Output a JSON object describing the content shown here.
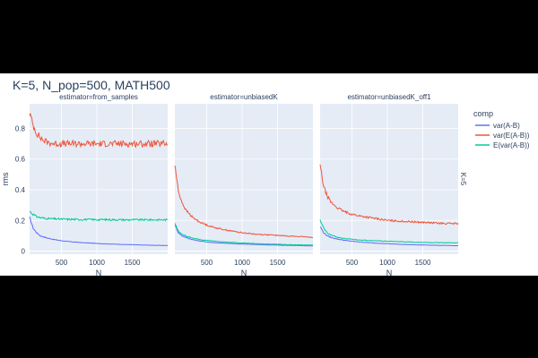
{
  "chart_data": {
    "type": "line",
    "title": "K=5, N_pop=500, MATH500",
    "ylabel": "rms",
    "xlabel": "N",
    "facet_row_label": "K=5",
    "legend_title": "comp",
    "xlim": [
      50,
      2000
    ],
    "ylim": [
      -0.02,
      0.96
    ],
    "xticks": [
      500,
      1000,
      1500
    ],
    "yticks": [
      0,
      0.2,
      0.4,
      0.6,
      0.8
    ],
    "series_meta": [
      {
        "name": "var(A-B)",
        "color": "#636efa"
      },
      {
        "name": "var(E(A-B))",
        "color": "#ef553b"
      },
      {
        "name": "E(var(A-B))",
        "color": "#00cc96"
      }
    ],
    "panels": [
      {
        "subtitle": "estimator=from_samples",
        "series": [
          {
            "name": "var(A-B)",
            "x": [
              50,
              100,
              150,
              200,
              300,
              400,
              500,
              600,
              800,
              1000,
              1200,
              1400,
              1600,
              1800,
              2000
            ],
            "y": [
              0.22,
              0.15,
              0.12,
              0.1,
              0.085,
              0.075,
              0.068,
              0.062,
              0.055,
              0.05,
              0.046,
              0.043,
              0.04,
              0.038,
              0.036
            ]
          },
          {
            "name": "var(E(A-B))",
            "x": [
              50,
              100,
              150,
              200,
              250,
              300,
              400,
              500,
              600,
              800,
              1000,
              1200,
              1400,
              1600,
              1800,
              2000
            ],
            "y": [
              0.9,
              0.82,
              0.77,
              0.74,
              0.72,
              0.71,
              0.7,
              0.7,
              0.7,
              0.7,
              0.7,
              0.7,
              0.7,
              0.7,
              0.7,
              0.7
            ]
          },
          {
            "name": "E(var(A-B))",
            "x": [
              50,
              100,
              150,
              200,
              300,
              400,
              500,
              600,
              800,
              1000,
              1200,
              1400,
              1600,
              1800,
              2000
            ],
            "y": [
              0.26,
              0.24,
              0.225,
              0.218,
              0.212,
              0.21,
              0.208,
              0.207,
              0.206,
              0.205,
              0.205,
              0.204,
              0.204,
              0.204,
              0.204
            ]
          }
        ]
      },
      {
        "subtitle": "estimator=unbiasedK",
        "series": [
          {
            "name": "var(A-B)",
            "x": [
              50,
              100,
              150,
              200,
              300,
              400,
              500,
              600,
              800,
              1000,
              1200,
              1400,
              1600,
              1800,
              2000
            ],
            "y": [
              0.17,
              0.12,
              0.1,
              0.09,
              0.075,
              0.066,
              0.06,
              0.055,
              0.05,
              0.046,
              0.043,
              0.04,
              0.038,
              0.036,
              0.034
            ]
          },
          {
            "name": "var(E(A-B))",
            "x": [
              50,
              100,
              150,
              200,
              300,
              400,
              500,
              600,
              800,
              1000,
              1200,
              1400,
              1600,
              1800,
              2000
            ],
            "y": [
              0.56,
              0.39,
              0.32,
              0.27,
              0.22,
              0.19,
              0.17,
              0.155,
              0.135,
              0.12,
              0.11,
              0.105,
              0.1,
              0.095,
              0.09
            ]
          },
          {
            "name": "E(var(A-B))",
            "x": [
              50,
              100,
              150,
              200,
              300,
              400,
              500,
              600,
              800,
              1000,
              1200,
              1400,
              1600,
              1800,
              2000
            ],
            "y": [
              0.18,
              0.13,
              0.11,
              0.1,
              0.085,
              0.075,
              0.07,
              0.065,
              0.058,
              0.053,
              0.049,
              0.046,
              0.043,
              0.041,
              0.039
            ]
          }
        ]
      },
      {
        "subtitle": "estimator=unbiasedK_off1",
        "series": [
          {
            "name": "var(A-B)",
            "x": [
              50,
              100,
              150,
              200,
              300,
              400,
              500,
              600,
              800,
              1000,
              1200,
              1400,
              1600,
              1800,
              2000
            ],
            "y": [
              0.16,
              0.12,
              0.1,
              0.09,
              0.078,
              0.07,
              0.064,
              0.06,
              0.053,
              0.048,
              0.044,
              0.041,
              0.039,
              0.037,
              0.035
            ]
          },
          {
            "name": "var(E(A-B))",
            "x": [
              50,
              100,
              150,
              200,
              300,
              400,
              500,
              600,
              800,
              1000,
              1200,
              1400,
              1600,
              1800,
              2000
            ],
            "y": [
              0.56,
              0.42,
              0.36,
              0.32,
              0.28,
              0.255,
              0.24,
              0.23,
              0.215,
              0.2,
              0.195,
              0.19,
              0.185,
              0.18,
              0.18
            ]
          },
          {
            "name": "E(var(A-B))",
            "x": [
              50,
              100,
              150,
              200,
              300,
              400,
              500,
              600,
              800,
              1000,
              1200,
              1400,
              1600,
              1800,
              2000
            ],
            "y": [
              0.2,
              0.15,
              0.12,
              0.105,
              0.09,
              0.082,
              0.077,
              0.073,
              0.068,
              0.064,
              0.061,
              0.058,
              0.056,
              0.055,
              0.054
            ]
          }
        ]
      }
    ]
  }
}
